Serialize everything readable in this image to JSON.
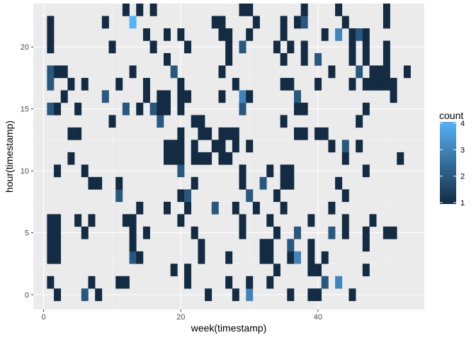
{
  "chart_data": {
    "type": "heatmap",
    "xlabel": "week(timestamp)",
    "ylabel": "hour(timestamp)",
    "xlim": [
      -1.5,
      55.5
    ],
    "ylim": [
      -1.2,
      23.5
    ],
    "x_ticks": [
      0,
      20,
      40
    ],
    "y_ticks": [
      0,
      5,
      10,
      15,
      20
    ],
    "grid": true,
    "legend": {
      "title": "count",
      "position": "right",
      "ticks": [
        1,
        2,
        3,
        4
      ],
      "low_color": "#132b43",
      "high_color": "#56b1f7",
      "range": [
        1,
        4
      ]
    },
    "cells": [
      {
        "week": 2,
        "hour": 0,
        "count": 1
      },
      {
        "week": 6,
        "hour": 0,
        "count": 2
      },
      {
        "week": 8,
        "hour": 0,
        "count": 1
      },
      {
        "week": 24,
        "hour": 0,
        "count": 1
      },
      {
        "week": 28,
        "hour": 0,
        "count": 1
      },
      {
        "week": 30,
        "hour": 0,
        "count": 3
      },
      {
        "week": 36,
        "hour": 0,
        "count": 1
      },
      {
        "week": 39,
        "hour": 0,
        "count": 1
      },
      {
        "week": 40,
        "hour": 0,
        "count": 1
      },
      {
        "week": 45,
        "hour": 0,
        "count": 1
      },
      {
        "week": 1,
        "hour": 1,
        "count": 1
      },
      {
        "week": 7,
        "hour": 1,
        "count": 1
      },
      {
        "week": 11,
        "hour": 1,
        "count": 1
      },
      {
        "week": 12,
        "hour": 1,
        "count": 1
      },
      {
        "week": 21,
        "hour": 1,
        "count": 1
      },
      {
        "week": 27,
        "hour": 1,
        "count": 1
      },
      {
        "week": 30,
        "hour": 1,
        "count": 1
      },
      {
        "week": 33,
        "hour": 1,
        "count": 1
      },
      {
        "week": 41,
        "hour": 1,
        "count": 2
      },
      {
        "week": 43,
        "hour": 1,
        "count": 3
      },
      {
        "week": 19,
        "hour": 2,
        "count": 1
      },
      {
        "week": 21,
        "hour": 2,
        "count": 1
      },
      {
        "week": 34,
        "hour": 2,
        "count": 1
      },
      {
        "week": 39,
        "hour": 2,
        "count": 1
      },
      {
        "week": 40,
        "hour": 2,
        "count": 1
      },
      {
        "week": 47,
        "hour": 2,
        "count": 1
      },
      {
        "week": 1,
        "hour": 3,
        "count": 1
      },
      {
        "week": 2,
        "hour": 3,
        "count": 1
      },
      {
        "week": 13,
        "hour": 3,
        "count": 2
      },
      {
        "week": 14,
        "hour": 3,
        "count": 1
      },
      {
        "week": 23,
        "hour": 3,
        "count": 1
      },
      {
        "week": 27,
        "hour": 3,
        "count": 1
      },
      {
        "week": 32,
        "hour": 3,
        "count": 1
      },
      {
        "week": 33,
        "hour": 3,
        "count": 1
      },
      {
        "week": 36,
        "hour": 3,
        "count": 1
      },
      {
        "week": 37,
        "hour": 3,
        "count": 3
      },
      {
        "week": 39,
        "hour": 3,
        "count": 1
      },
      {
        "week": 41,
        "hour": 3,
        "count": 1
      },
      {
        "week": 1,
        "hour": 4,
        "count": 1
      },
      {
        "week": 2,
        "hour": 4,
        "count": 1
      },
      {
        "week": 13,
        "hour": 4,
        "count": 1
      },
      {
        "week": 23,
        "hour": 4,
        "count": 1
      },
      {
        "week": 32,
        "hour": 4,
        "count": 1
      },
      {
        "week": 33,
        "hour": 4,
        "count": 1
      },
      {
        "week": 36,
        "hour": 4,
        "count": 2
      },
      {
        "week": 39,
        "hour": 4,
        "count": 1
      },
      {
        "week": 47,
        "hour": 4,
        "count": 1
      },
      {
        "week": 1,
        "hour": 5,
        "count": 1
      },
      {
        "week": 2,
        "hour": 5,
        "count": 1
      },
      {
        "week": 6,
        "hour": 5,
        "count": 1
      },
      {
        "week": 13,
        "hour": 5,
        "count": 1
      },
      {
        "week": 15,
        "hour": 5,
        "count": 1
      },
      {
        "week": 22,
        "hour": 5,
        "count": 1
      },
      {
        "week": 29,
        "hour": 5,
        "count": 1
      },
      {
        "week": 34,
        "hour": 5,
        "count": 1
      },
      {
        "week": 37,
        "hour": 5,
        "count": 2
      },
      {
        "week": 44,
        "hour": 5,
        "count": 1
      },
      {
        "week": 47,
        "hour": 5,
        "count": 1
      },
      {
        "week": 50,
        "hour": 5,
        "count": 1
      },
      {
        "week": 51,
        "hour": 5,
        "count": 1
      },
      {
        "week": 42,
        "hour": 5,
        "count": 2
      },
      {
        "week": 1,
        "hour": 6,
        "count": 1
      },
      {
        "week": 2,
        "hour": 6,
        "count": 1
      },
      {
        "week": 5,
        "hour": 6,
        "count": 1
      },
      {
        "week": 7,
        "hour": 6,
        "count": 1
      },
      {
        "week": 12,
        "hour": 6,
        "count": 1
      },
      {
        "week": 13,
        "hour": 6,
        "count": 1
      },
      {
        "week": 20,
        "hour": 6,
        "count": 1
      },
      {
        "week": 29,
        "hour": 6,
        "count": 1
      },
      {
        "week": 33,
        "hour": 6,
        "count": 1
      },
      {
        "week": 39,
        "hour": 6,
        "count": 1
      },
      {
        "week": 44,
        "hour": 6,
        "count": 1
      },
      {
        "week": 48,
        "hour": 6,
        "count": 1
      },
      {
        "week": 14,
        "hour": 7,
        "count": 1
      },
      {
        "week": 18,
        "hour": 7,
        "count": 1
      },
      {
        "week": 21,
        "hour": 7,
        "count": 1
      },
      {
        "week": 25,
        "hour": 7,
        "count": 2
      },
      {
        "week": 28,
        "hour": 7,
        "count": 1
      },
      {
        "week": 31,
        "hour": 7,
        "count": 1
      },
      {
        "week": 35,
        "hour": 7,
        "count": 1
      },
      {
        "week": 42,
        "hour": 7,
        "count": 1
      },
      {
        "week": 11,
        "hour": 8,
        "count": 2
      },
      {
        "week": 20,
        "hour": 8,
        "count": 1
      },
      {
        "week": 21,
        "hour": 8,
        "count": 2
      },
      {
        "week": 30,
        "hour": 8,
        "count": 2
      },
      {
        "week": 34,
        "hour": 8,
        "count": 1
      },
      {
        "week": 44,
        "hour": 8,
        "count": 1
      },
      {
        "week": 7,
        "hour": 9,
        "count": 1
      },
      {
        "week": 8,
        "hour": 9,
        "count": 1
      },
      {
        "week": 11,
        "hour": 9,
        "count": 1
      },
      {
        "week": 22,
        "hour": 9,
        "count": 1
      },
      {
        "week": 29,
        "hour": 9,
        "count": 1
      },
      {
        "week": 32,
        "hour": 9,
        "count": 2
      },
      {
        "week": 35,
        "hour": 9,
        "count": 1
      },
      {
        "week": 36,
        "hour": 9,
        "count": 1
      },
      {
        "week": 43,
        "hour": 9,
        "count": 1
      },
      {
        "week": 2,
        "hour": 10,
        "count": 1
      },
      {
        "week": 6,
        "hour": 10,
        "count": 1
      },
      {
        "week": 20,
        "hour": 10,
        "count": 2
      },
      {
        "week": 29,
        "hour": 10,
        "count": 1
      },
      {
        "week": 33,
        "hour": 10,
        "count": 1
      },
      {
        "week": 35,
        "hour": 10,
        "count": 1
      },
      {
        "week": 36,
        "hour": 10,
        "count": 1
      },
      {
        "week": 47,
        "hour": 10,
        "count": 1
      },
      {
        "week": 4,
        "hour": 11,
        "count": 1
      },
      {
        "week": 18,
        "hour": 11,
        "count": 1
      },
      {
        "week": 19,
        "hour": 11,
        "count": 1
      },
      {
        "week": 20,
        "hour": 11,
        "count": 1
      },
      {
        "week": 22,
        "hour": 11,
        "count": 1
      },
      {
        "week": 23,
        "hour": 11,
        "count": 1
      },
      {
        "week": 24,
        "hour": 11,
        "count": 1
      },
      {
        "week": 26,
        "hour": 11,
        "count": 1
      },
      {
        "week": 27,
        "hour": 11,
        "count": 1
      },
      {
        "week": 44,
        "hour": 11,
        "count": 1
      },
      {
        "week": 52,
        "hour": 11,
        "count": 1
      },
      {
        "week": 18,
        "hour": 12,
        "count": 1
      },
      {
        "week": 19,
        "hour": 12,
        "count": 1
      },
      {
        "week": 20,
        "hour": 12,
        "count": 1
      },
      {
        "week": 22,
        "hour": 12,
        "count": 1
      },
      {
        "week": 25,
        "hour": 12,
        "count": 1
      },
      {
        "week": 26,
        "hour": 12,
        "count": 1
      },
      {
        "week": 28,
        "hour": 12,
        "count": 1
      },
      {
        "week": 30,
        "hour": 12,
        "count": 1
      },
      {
        "week": 42,
        "hour": 12,
        "count": 1
      },
      {
        "week": 44,
        "hour": 12,
        "count": 2
      },
      {
        "week": 46,
        "hour": 12,
        "count": 1
      },
      {
        "week": 4,
        "hour": 13,
        "count": 1
      },
      {
        "week": 5,
        "hour": 13,
        "count": 1
      },
      {
        "week": 20,
        "hour": 13,
        "count": 1
      },
      {
        "week": 23,
        "hour": 13,
        "count": 1
      },
      {
        "week": 24,
        "hour": 13,
        "count": 1
      },
      {
        "week": 26,
        "hour": 13,
        "count": 1
      },
      {
        "week": 27,
        "hour": 13,
        "count": 1
      },
      {
        "week": 28,
        "hour": 13,
        "count": 1
      },
      {
        "week": 37,
        "hour": 13,
        "count": 1
      },
      {
        "week": 38,
        "hour": 13,
        "count": 1
      },
      {
        "week": 40,
        "hour": 13,
        "count": 1
      },
      {
        "week": 41,
        "hour": 13,
        "count": 1
      },
      {
        "week": 10,
        "hour": 14,
        "count": 1
      },
      {
        "week": 17,
        "hour": 14,
        "count": 2
      },
      {
        "week": 22,
        "hour": 14,
        "count": 1
      },
      {
        "week": 23,
        "hour": 14,
        "count": 1
      },
      {
        "week": 35,
        "hour": 14,
        "count": 1
      },
      {
        "week": 46,
        "hour": 14,
        "count": 1
      },
      {
        "week": 1,
        "hour": 15,
        "count": 2
      },
      {
        "week": 2,
        "hour": 15,
        "count": 1
      },
      {
        "week": 5,
        "hour": 15,
        "count": 1
      },
      {
        "week": 12,
        "hour": 15,
        "count": 2
      },
      {
        "week": 14,
        "hour": 15,
        "count": 1
      },
      {
        "week": 16,
        "hour": 15,
        "count": 2
      },
      {
        "week": 17,
        "hour": 15,
        "count": 1
      },
      {
        "week": 18,
        "hour": 15,
        "count": 1
      },
      {
        "week": 20,
        "hour": 15,
        "count": 1
      },
      {
        "week": 29,
        "hour": 15,
        "count": 2
      },
      {
        "week": 37,
        "hour": 15,
        "count": 1
      },
      {
        "week": 38,
        "hour": 15,
        "count": 1
      },
      {
        "week": 47,
        "hour": 15,
        "count": 1
      },
      {
        "week": 3,
        "hour": 16,
        "count": 1
      },
      {
        "week": 9,
        "hour": 16,
        "count": 2
      },
      {
        "week": 15,
        "hour": 16,
        "count": 1
      },
      {
        "week": 17,
        "hour": 16,
        "count": 1
      },
      {
        "week": 18,
        "hour": 16,
        "count": 1
      },
      {
        "week": 20,
        "hour": 16,
        "count": 1
      },
      {
        "week": 21,
        "hour": 16,
        "count": 1
      },
      {
        "week": 26,
        "hour": 16,
        "count": 1
      },
      {
        "week": 29,
        "hour": 16,
        "count": 3
      },
      {
        "week": 30,
        "hour": 16,
        "count": 1
      },
      {
        "week": 37,
        "hour": 16,
        "count": 2
      },
      {
        "week": 51,
        "hour": 16,
        "count": 1
      },
      {
        "week": 1,
        "hour": 17,
        "count": 2
      },
      {
        "week": 4,
        "hour": 17,
        "count": 1
      },
      {
        "week": 6,
        "hour": 17,
        "count": 1
      },
      {
        "week": 11,
        "hour": 17,
        "count": 1
      },
      {
        "week": 15,
        "hour": 17,
        "count": 1
      },
      {
        "week": 20,
        "hour": 17,
        "count": 1
      },
      {
        "week": 28,
        "hour": 17,
        "count": 1
      },
      {
        "week": 35,
        "hour": 17,
        "count": 1
      },
      {
        "week": 36,
        "hour": 17,
        "count": 1
      },
      {
        "week": 40,
        "hour": 17,
        "count": 1
      },
      {
        "week": 45,
        "hour": 17,
        "count": 1
      },
      {
        "week": 47,
        "hour": 17,
        "count": 1
      },
      {
        "week": 48,
        "hour": 17,
        "count": 1
      },
      {
        "week": 49,
        "hour": 17,
        "count": 1
      },
      {
        "week": 50,
        "hour": 17,
        "count": 1
      },
      {
        "week": 51,
        "hour": 17,
        "count": 1
      },
      {
        "week": 1,
        "hour": 18,
        "count": 2
      },
      {
        "week": 2,
        "hour": 18,
        "count": 1
      },
      {
        "week": 3,
        "hour": 18,
        "count": 1
      },
      {
        "week": 13,
        "hour": 18,
        "count": 1
      },
      {
        "week": 19,
        "hour": 18,
        "count": 2
      },
      {
        "week": 26,
        "hour": 18,
        "count": 1
      },
      {
        "week": 42,
        "hour": 18,
        "count": 1
      },
      {
        "week": 46,
        "hour": 18,
        "count": 2
      },
      {
        "week": 49,
        "hour": 18,
        "count": 1
      },
      {
        "week": 50,
        "hour": 18,
        "count": 1
      },
      {
        "week": 53,
        "hour": 18,
        "count": 1
      },
      {
        "week": 48,
        "hour": 18,
        "count": 1
      },
      {
        "week": 18,
        "hour": 19,
        "count": 1
      },
      {
        "week": 27,
        "hour": 19,
        "count": 1
      },
      {
        "week": 35,
        "hour": 19,
        "count": 1
      },
      {
        "week": 38,
        "hour": 19,
        "count": 1
      },
      {
        "week": 40,
        "hour": 19,
        "count": 2
      },
      {
        "week": 45,
        "hour": 19,
        "count": 1
      },
      {
        "week": 47,
        "hour": 19,
        "count": 1
      },
      {
        "week": 50,
        "hour": 19,
        "count": 1
      },
      {
        "week": 1,
        "hour": 20,
        "count": 1
      },
      {
        "week": 10,
        "hour": 20,
        "count": 1
      },
      {
        "week": 16,
        "hour": 20,
        "count": 1
      },
      {
        "week": 21,
        "hour": 20,
        "count": 1
      },
      {
        "week": 27,
        "hour": 20,
        "count": 1
      },
      {
        "week": 29,
        "hour": 20,
        "count": 2
      },
      {
        "week": 34,
        "hour": 20,
        "count": 1
      },
      {
        "week": 36,
        "hour": 20,
        "count": 1
      },
      {
        "week": 38,
        "hour": 20,
        "count": 1
      },
      {
        "week": 45,
        "hour": 20,
        "count": 1
      },
      {
        "week": 47,
        "hour": 20,
        "count": 1
      },
      {
        "week": 50,
        "hour": 20,
        "count": 1
      },
      {
        "week": 1,
        "hour": 21,
        "count": 1
      },
      {
        "week": 15,
        "hour": 21,
        "count": 1
      },
      {
        "week": 18,
        "hour": 21,
        "count": 1
      },
      {
        "week": 20,
        "hour": 21,
        "count": 1
      },
      {
        "week": 26,
        "hour": 21,
        "count": 1
      },
      {
        "week": 27,
        "hour": 21,
        "count": 1
      },
      {
        "week": 30,
        "hour": 21,
        "count": 1
      },
      {
        "week": 35,
        "hour": 21,
        "count": 1
      },
      {
        "week": 41,
        "hour": 21,
        "count": 1
      },
      {
        "week": 43,
        "hour": 21,
        "count": 3
      },
      {
        "week": 45,
        "hour": 21,
        "count": 1
      },
      {
        "week": 46,
        "hour": 21,
        "count": 2
      },
      {
        "week": 47,
        "hour": 21,
        "count": 1
      },
      {
        "week": 1,
        "hour": 22,
        "count": 1
      },
      {
        "week": 9,
        "hour": 22,
        "count": 1
      },
      {
        "week": 13,
        "hour": 22,
        "count": 4
      },
      {
        "week": 25,
        "hour": 22,
        "count": 1
      },
      {
        "week": 26,
        "hour": 22,
        "count": 1
      },
      {
        "week": 31,
        "hour": 22,
        "count": 1
      },
      {
        "week": 35,
        "hour": 22,
        "count": 1
      },
      {
        "week": 37,
        "hour": 22,
        "count": 1
      },
      {
        "week": 38,
        "hour": 22,
        "count": 2
      },
      {
        "week": 44,
        "hour": 22,
        "count": 1
      },
      {
        "week": 50,
        "hour": 22,
        "count": 1
      },
      {
        "week": 12,
        "hour": 23,
        "count": 1
      },
      {
        "week": 14,
        "hour": 23,
        "count": 1
      },
      {
        "week": 16,
        "hour": 23,
        "count": 1
      },
      {
        "week": 29,
        "hour": 23,
        "count": 1
      },
      {
        "week": 30,
        "hour": 23,
        "count": 1
      },
      {
        "week": 38,
        "hour": 23,
        "count": 1
      },
      {
        "week": 43,
        "hour": 23,
        "count": 1
      },
      {
        "week": 50,
        "hour": 23,
        "count": 1
      }
    ]
  }
}
